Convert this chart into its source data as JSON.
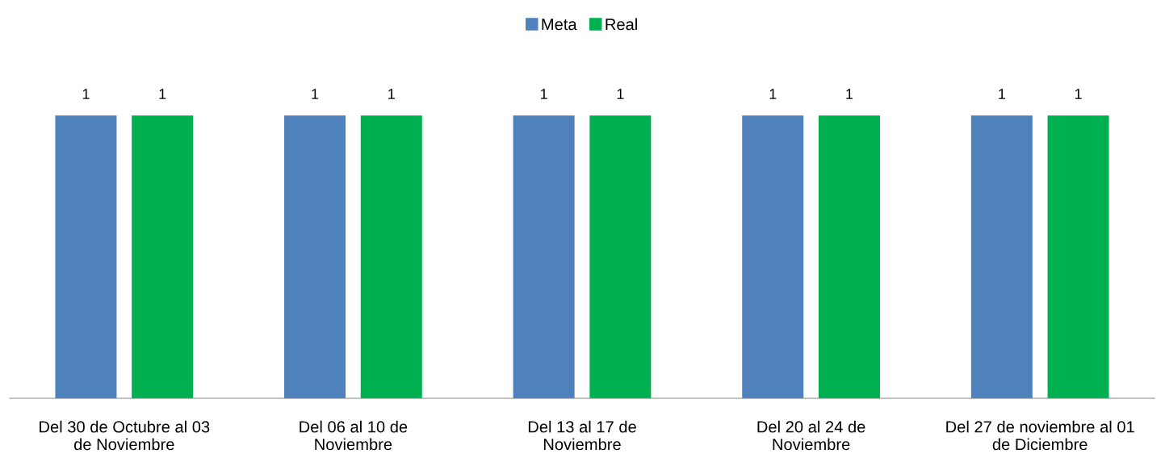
{
  "chart_data": {
    "type": "bar",
    "categories": [
      "Del 30 de Octubre al 03\nde Noviembre",
      "Del 06 al 10 de\nNoviembre",
      "Del 13 al 17 de\nNoviembre",
      "Del 20 al 24 de\nNoviembre",
      "Del 27 de noviembre al 01\nde Diciembre"
    ],
    "series": [
      {
        "name": "Meta",
        "color": "#4f81bd",
        "values": [
          1,
          1,
          1,
          1,
          1
        ]
      },
      {
        "name": "Real",
        "color": "#00b050",
        "values": [
          1,
          1,
          1,
          1,
          1
        ]
      }
    ],
    "data_labels": true,
    "legend": "top",
    "grid": false,
    "tick_labels": "x"
  }
}
